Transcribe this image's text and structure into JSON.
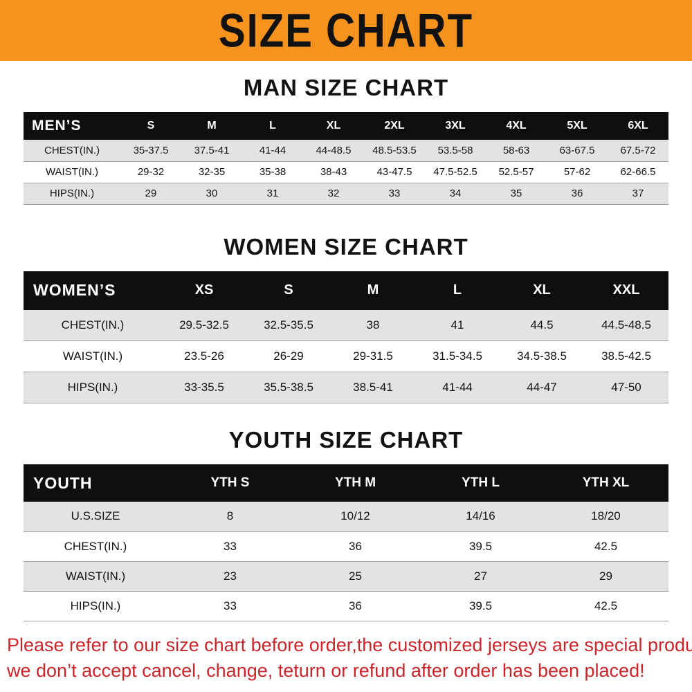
{
  "banner": {
    "title": "SIZE CHART"
  },
  "theme": {
    "banner_bg": "#f6921e",
    "header_bg": "#0f0f0f",
    "row_alt_bg": "#e3e3e3",
    "row_line": "#9a9a9a",
    "note_color": "#c9252b",
    "text_color": "#141414"
  },
  "sections": [
    {
      "id": "men",
      "heading": "MAN SIZE CHART",
      "table": {
        "header": [
          "MEN’S",
          "S",
          "M",
          "L",
          "XL",
          "2XL",
          "3XL",
          "4XL",
          "5XL",
          "6XL"
        ],
        "rows": [
          [
            "CHEST(IN.)",
            "35-37.5",
            "37.5-41",
            "41-44",
            "44-48.5",
            "48.5-53.5",
            "53.5-58",
            "58-63",
            "63-67.5",
            "67.5-72"
          ],
          [
            "WAIST(IN.)",
            "29-32",
            "32-35",
            "35-38",
            "38-43",
            "43-47.5",
            "47.5-52.5",
            "52.5-57",
            "57-62",
            "62-66.5"
          ],
          [
            "HIPS(IN.)",
            "29",
            "30",
            "31",
            "32",
            "33",
            "34",
            "35",
            "36",
            "37"
          ]
        ]
      }
    },
    {
      "id": "women",
      "heading": "WOMEN SIZE CHART",
      "table": {
        "header": [
          "WOMEN’S",
          "XS",
          "S",
          "M",
          "L",
          "XL",
          "XXL"
        ],
        "rows": [
          [
            "CHEST(IN.)",
            "29.5-32.5",
            "32.5-35.5",
            "38",
            "41",
            "44.5",
            "44.5-48.5"
          ],
          [
            "WAIST(IN.)",
            "23.5-26",
            "26-29",
            "29-31.5",
            "31.5-34.5",
            "34.5-38.5",
            "38.5-42.5"
          ],
          [
            "HIPS(IN.)",
            "33-35.5",
            "35.5-38.5",
            "38.5-41",
            "41-44",
            "44-47",
            "47-50"
          ]
        ]
      }
    },
    {
      "id": "youth",
      "heading": "YOUTH SIZE CHART",
      "table": {
        "header": [
          "YOUTH",
          "YTH S",
          "YTH M",
          "YTH L",
          "YTH XL"
        ],
        "rows": [
          [
            "U.S.SIZE",
            "8",
            "10/12",
            "14/16",
            "18/20"
          ],
          [
            "CHEST(IN.)",
            "33",
            "36",
            "39.5",
            "42.5"
          ],
          [
            "WAIST(IN.)",
            "23",
            "25",
            "27",
            "29"
          ],
          [
            "HIPS(IN.)",
            "33",
            "36",
            "39.5",
            "42.5"
          ]
        ]
      }
    }
  ],
  "footer": {
    "lines": [
      "Please refer to our size chart before order,the customized jerseys are special products,",
      "we don’t accept cancel, change, teturn or refund after order has been placed!"
    ]
  }
}
